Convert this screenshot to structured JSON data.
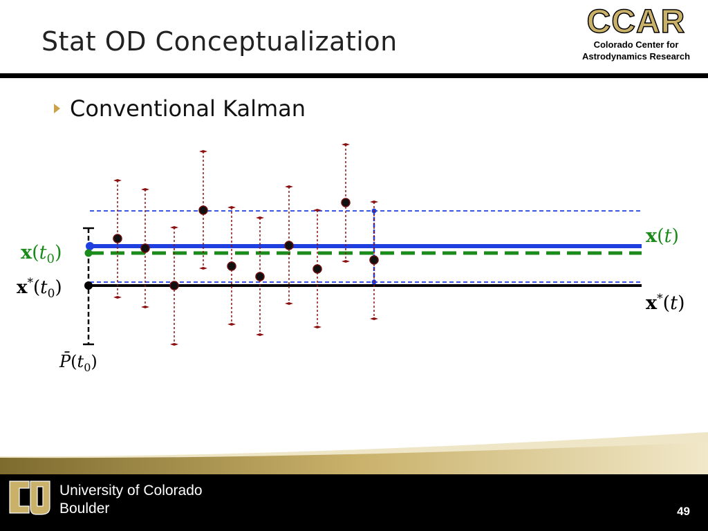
{
  "slide": {
    "title": "Stat OD Conceptualization",
    "bullet": "Conventional Kalman",
    "page_number": "49"
  },
  "logo": {
    "ccar": "CCAR",
    "ccar_line1": "Colorado Center for",
    "ccar_line2": "Astrodynamics Research"
  },
  "footer": {
    "univ_line1": "University of Colorado",
    "univ_line2": "Boulder"
  },
  "diagram": {
    "labels": {
      "x_t0": "x(t0)",
      "xstar_t0": "x*(t0)",
      "x_t": "x(t)",
      "xstar_t": "x*(t)",
      "P_t0": "P̄(t0)"
    },
    "colors": {
      "estimate": "#1f3fe0",
      "truth_line": "#1a8a1a",
      "reference": "#000000",
      "measurements": "#8b1010"
    }
  }
}
